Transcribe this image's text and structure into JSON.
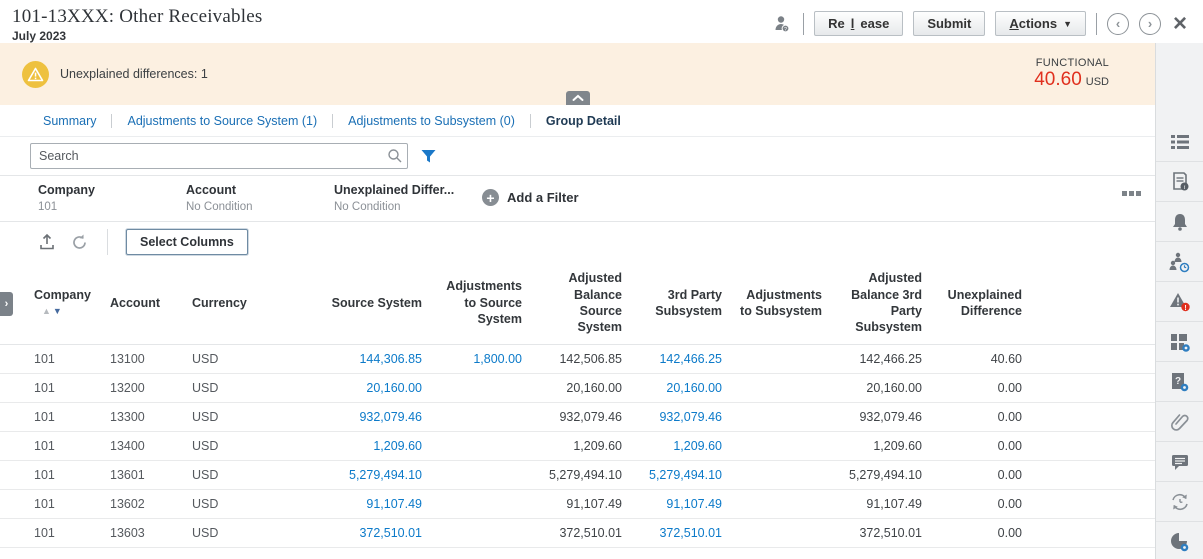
{
  "header": {
    "title": "101-13XXX: Other Receivables",
    "subtitle": "July 2023",
    "buttons": {
      "release": "Release",
      "submit": "Submit",
      "actions": "Actions"
    }
  },
  "banner": {
    "warning_text": "Unexplained differences: 1",
    "currency_label": "FUNCTIONAL",
    "amount": "40.60",
    "currency": "USD"
  },
  "tabs": [
    {
      "label": "Summary",
      "active": false
    },
    {
      "label": "Adjustments to Source System (1)",
      "active": false
    },
    {
      "label": "Adjustments to Subsystem (0)",
      "active": false
    },
    {
      "label": "Group Detail",
      "active": true
    }
  ],
  "search": {
    "placeholder": "Search"
  },
  "filters": {
    "items": [
      {
        "label": "Company",
        "value": "101"
      },
      {
        "label": "Account",
        "value": "No Condition"
      },
      {
        "label": "Unexplained Differ...",
        "value": "No Condition"
      }
    ],
    "add_label": "Add a Filter"
  },
  "toolbar": {
    "select_columns_label": "Select Columns"
  },
  "table": {
    "columns": [
      "Company",
      "Account",
      "Currency",
      "Source System",
      "Adjustments to Source System",
      "Adjusted Balance Source System",
      "3rd Party Subsystem",
      "Adjustments to Subsystem",
      "Adjusted Balance 3rd Party Subsystem",
      "Unexplained Difference"
    ],
    "rows": [
      [
        "101",
        "13100",
        "USD",
        "144,306.85",
        "1,800.00",
        "142,506.85",
        "142,466.25",
        "",
        "142,466.25",
        "40.60"
      ],
      [
        "101",
        "13200",
        "USD",
        "20,160.00",
        "",
        "20,160.00",
        "20,160.00",
        "",
        "20,160.00",
        "0.00"
      ],
      [
        "101",
        "13300",
        "USD",
        "932,079.46",
        "",
        "932,079.46",
        "932,079.46",
        "",
        "932,079.46",
        "0.00"
      ],
      [
        "101",
        "13400",
        "USD",
        "1,209.60",
        "",
        "1,209.60",
        "1,209.60",
        "",
        "1,209.60",
        "0.00"
      ],
      [
        "101",
        "13601",
        "USD",
        "5,279,494.10",
        "",
        "5,279,494.10",
        "5,279,494.10",
        "",
        "5,279,494.10",
        "0.00"
      ],
      [
        "101",
        "13602",
        "USD",
        "91,107.49",
        "",
        "91,107.49",
        "91,107.49",
        "",
        "91,107.49",
        "0.00"
      ],
      [
        "101",
        "13603",
        "USD",
        "372,510.01",
        "",
        "372,510.01",
        "372,510.01",
        "",
        "372,510.01",
        "0.00"
      ]
    ],
    "link_columns": [
      3,
      4,
      6
    ]
  },
  "sidebar": {
    "icons": [
      "properties-list",
      "instructions",
      "alerts",
      "workflow",
      "warnings",
      "attributes",
      "questions",
      "attachments",
      "comments",
      "prior-reconciliations",
      "history"
    ]
  },
  "colors": {
    "banner_background": "#fcf0e1",
    "warning_yellow": "#eec13f",
    "amount_red": "#e0301e",
    "link_blue": "#0c7ac9",
    "active_tab": "#1f3a54"
  }
}
